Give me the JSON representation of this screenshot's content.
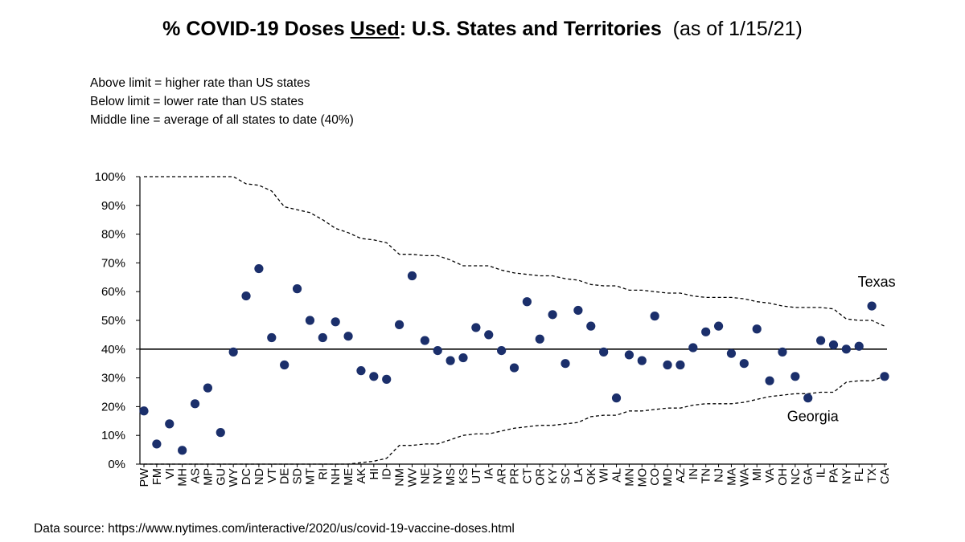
{
  "header": {
    "title_bold_1": "% COVID-19 Doses ",
    "title_bold_underlined": "Used",
    "title_bold_2": ": U.S. States and Territories",
    "title_normal": "(as of 1/15/21)"
  },
  "notes": [
    "Above limit = higher rate than US states",
    "Below limit = lower rate than US states",
    "Middle line = average of all states to date (40%)"
  ],
  "footer": {
    "source": "Data source: https://www.nytimes.com/interactive/2020/us/covid-19-vaccine-doses.html"
  },
  "colors": {
    "points": "#1b2f6b",
    "axis": "#000000"
  },
  "chart_data": {
    "type": "scatter",
    "title": "% COVID-19 Doses Used: U.S. States and Territories (as of 1/15/21)",
    "ylabel": "",
    "xlabel": "",
    "ylim": [
      0,
      100
    ],
    "y_ticks": [
      "0%",
      "10%",
      "20%",
      "30%",
      "40%",
      "50%",
      "60%",
      "70%",
      "80%",
      "90%",
      "100%"
    ],
    "categories": [
      "PW",
      "FM",
      "VI",
      "MH",
      "AS",
      "MP",
      "GU",
      "WY",
      "DC",
      "ND",
      "VT",
      "DE",
      "SD",
      "MT",
      "RI",
      "NH",
      "ME",
      "AK",
      "HI",
      "ID",
      "NM",
      "WV",
      "NE",
      "NV",
      "MS",
      "KS",
      "UT",
      "IA",
      "AR",
      "PR",
      "CT",
      "OR",
      "KY",
      "SC",
      "LA",
      "OK",
      "WI",
      "AL",
      "MN",
      "MO",
      "CO",
      "MD",
      "AZ",
      "IN",
      "TN",
      "NJ",
      "MA",
      "WA",
      "MI",
      "VA",
      "OH",
      "NC",
      "GA",
      "IL",
      "PA",
      "NY",
      "FL",
      "TX",
      "CA"
    ],
    "values": [
      18.5,
      7,
      14,
      4.8,
      21,
      26.5,
      11,
      39,
      58.5,
      68,
      44,
      34.5,
      61,
      50,
      44,
      49.5,
      44.5,
      32.5,
      30.5,
      29.5,
      48.5,
      65.5,
      43,
      39.5,
      36,
      37,
      47.5,
      45,
      39.5,
      33.5,
      56.5,
      43.5,
      52,
      35,
      53.5,
      48,
      39,
      23,
      38,
      36,
      51.5,
      34.5,
      34.5,
      40.5,
      46,
      48,
      38.5,
      35,
      47,
      29,
      39,
      30.5,
      23,
      43,
      41.5,
      40,
      41,
      55,
      30.5
    ],
    "upper_limit": [
      100,
      100,
      100,
      100,
      100,
      100,
      100,
      100,
      97.5,
      97,
      95,
      89.5,
      88.5,
      87.5,
      85,
      82,
      80.5,
      78.5,
      78,
      77,
      73,
      73,
      72.5,
      72.5,
      71,
      69,
      69,
      69,
      67.5,
      66.5,
      66,
      65.5,
      65.5,
      64.5,
      64,
      62.5,
      62,
      62,
      60.5,
      60.5,
      60,
      59.5,
      59.5,
      58.5,
      58,
      58,
      58,
      57.5,
      56.5,
      56,
      55,
      54.5,
      54.5,
      54.5,
      54,
      50.5,
      50,
      50,
      48
    ],
    "lower_limit": [
      0,
      0,
      0,
      0,
      0,
      0,
      0,
      0,
      0,
      0,
      0,
      0,
      0,
      0,
      0,
      0,
      0,
      0.5,
      1,
      2,
      6.5,
      6.5,
      7,
      7,
      8.5,
      10,
      10.5,
      10.5,
      11.5,
      12.5,
      13,
      13.5,
      13.5,
      14,
      14.5,
      16.5,
      17,
      17,
      18.5,
      18.5,
      19,
      19.5,
      19.5,
      20.5,
      21,
      21,
      21,
      21.5,
      22.5,
      23.5,
      24,
      24.5,
      24.5,
      25,
      25,
      28.5,
      29,
      29,
      30.5
    ],
    "average_line": 40,
    "average_label": "average of all states to date (40%)",
    "annotations": [
      {
        "text": "Texas",
        "category": "TX",
        "value": 55
      },
      {
        "text": "Georgia",
        "category": "GA",
        "value": 23
      }
    ]
  }
}
